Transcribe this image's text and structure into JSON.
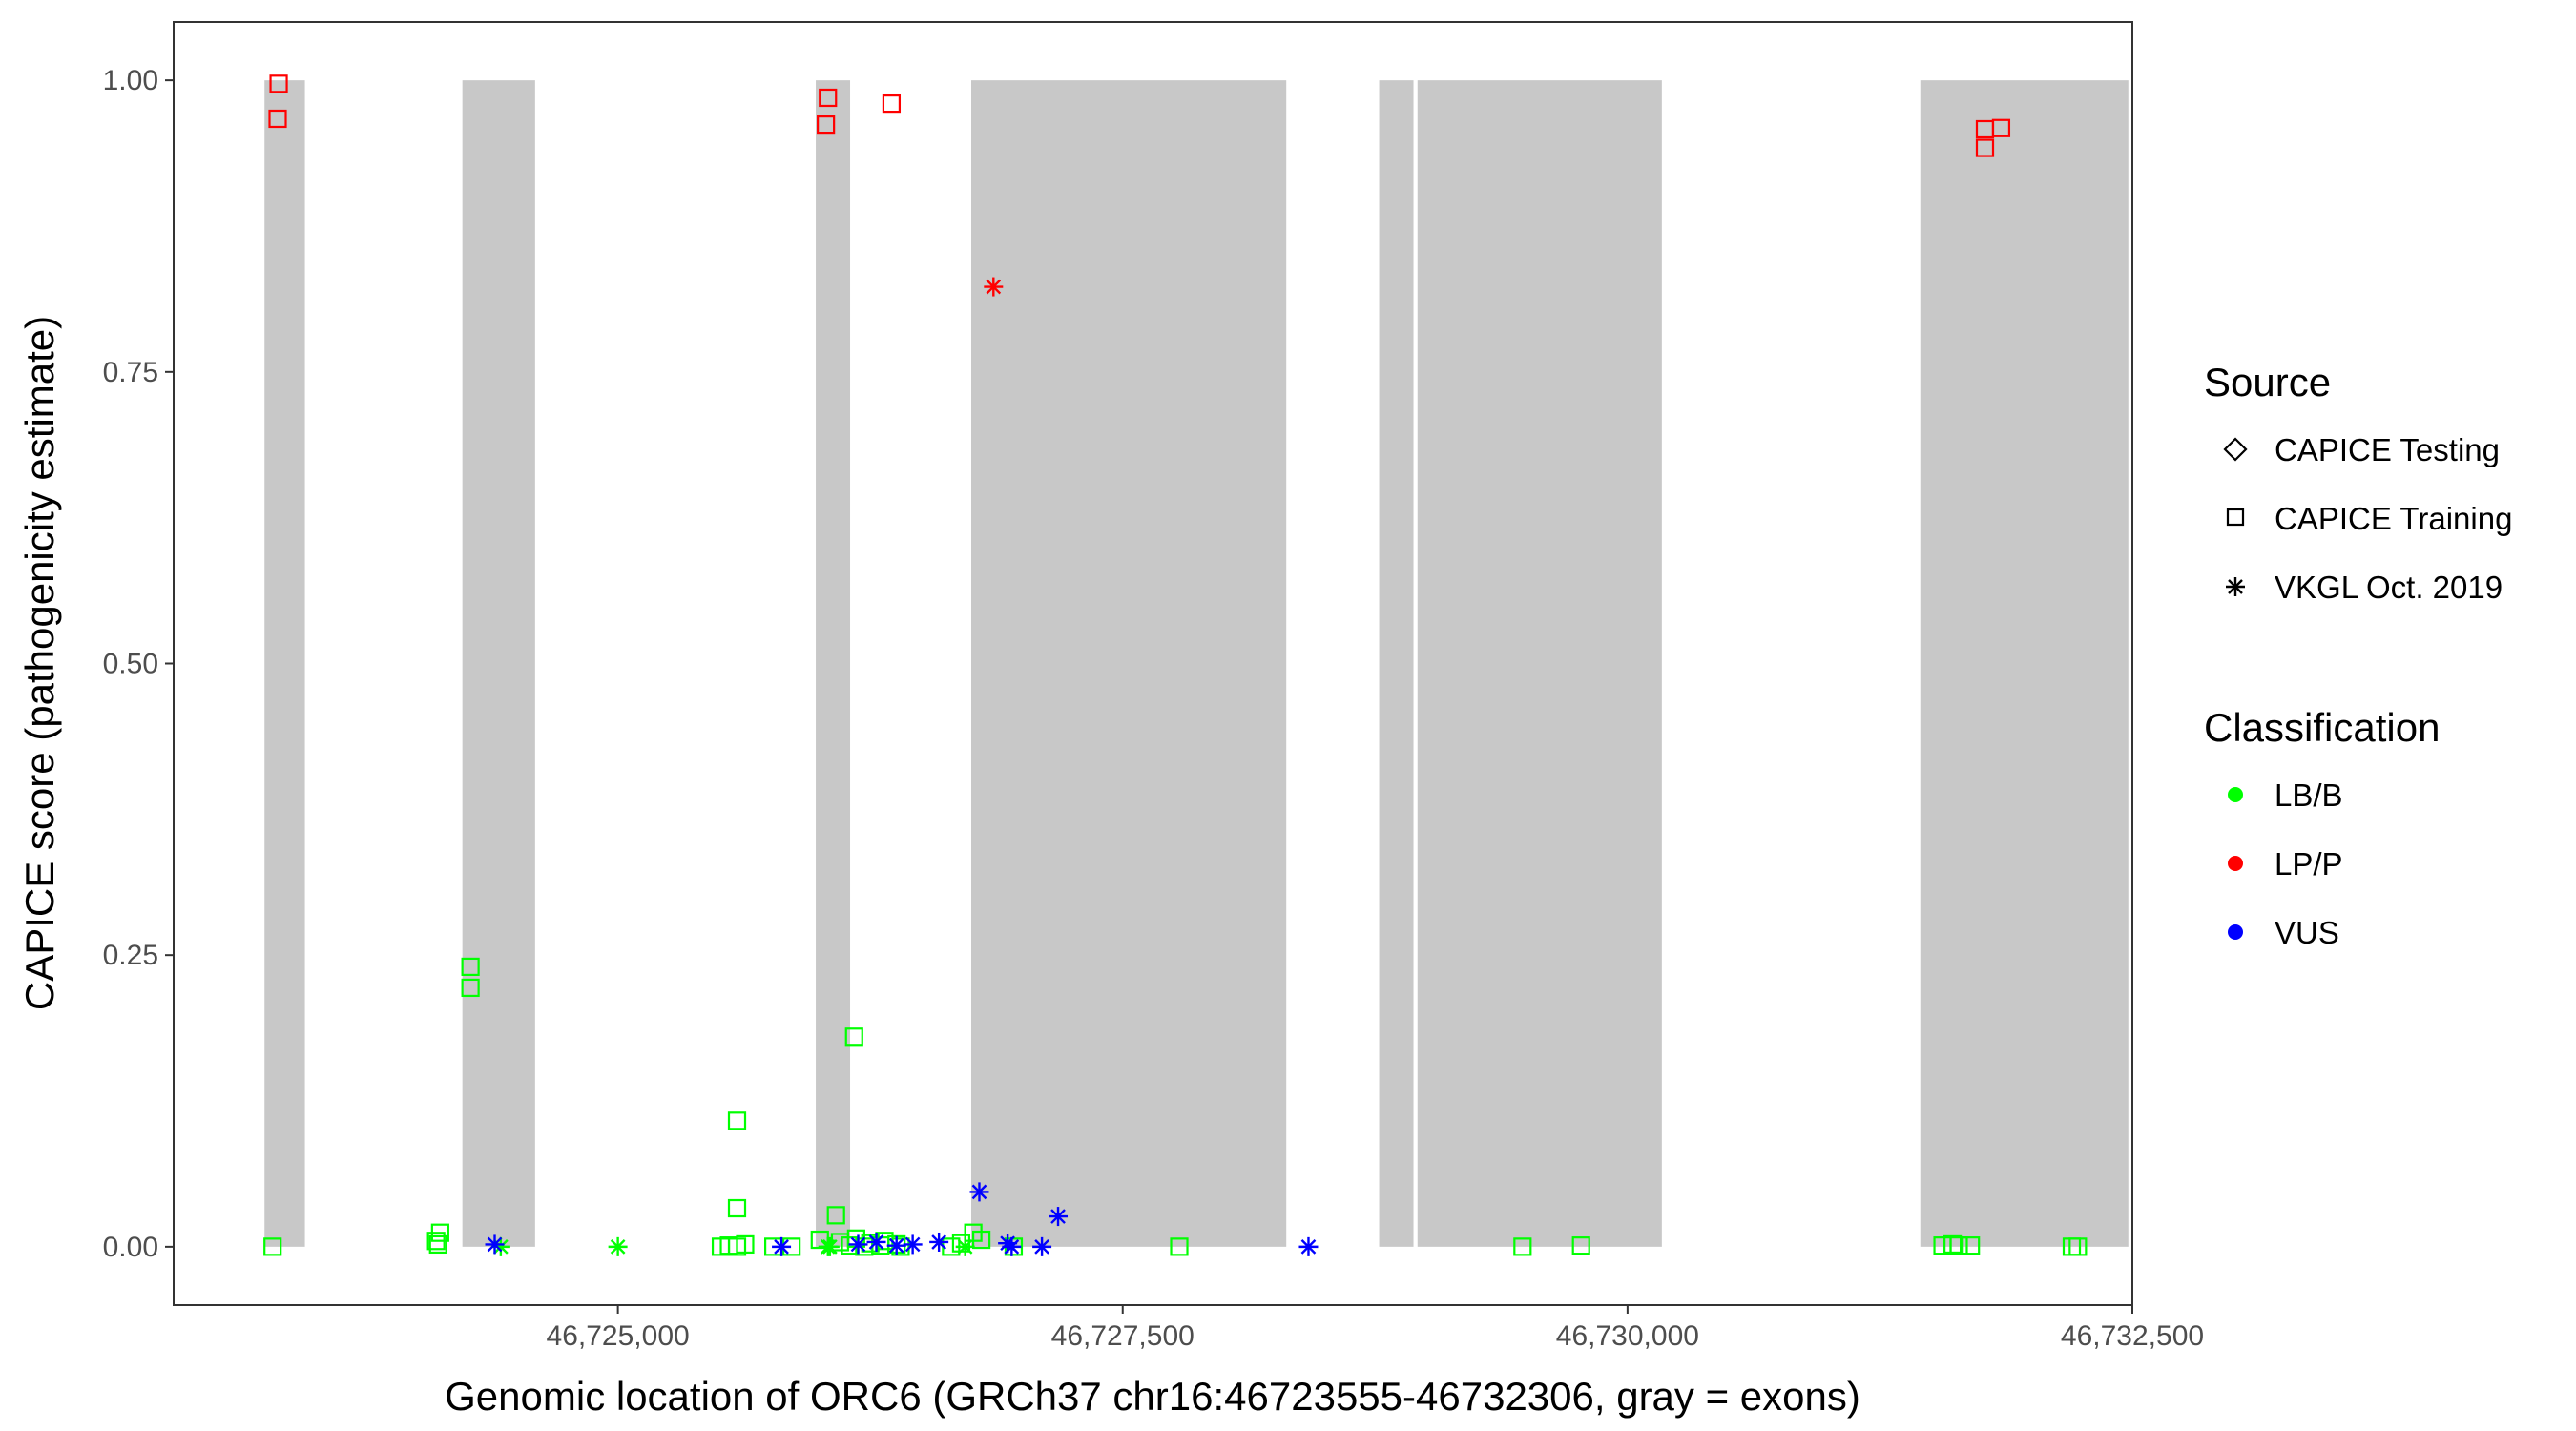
{
  "chart_data": {
    "type": "scatter",
    "xlabel": "Genomic location of ORC6 (GRCh37 chr16:46723555-46732306, gray = exons)",
    "ylabel": "CAPICE score (pathogenicity estimate)",
    "xlim": [
      46722800,
      46732500
    ],
    "ylim": [
      -0.05,
      1.05
    ],
    "x_ticks": [
      46725000,
      46727500,
      46730000,
      46732500
    ],
    "x_tick_labels": [
      "46,725,000",
      "46,727,500",
      "46,730,000",
      "46,732,500"
    ],
    "y_ticks": [
      0,
      0.25,
      0.5,
      0.75,
      1
    ],
    "y_tick_labels": [
      "0.00",
      "0.25",
      "0.50",
      "0.75",
      "1.00"
    ],
    "grid": false,
    "exon_color": "#c8c8c8",
    "exons": [
      {
        "start": 46723250,
        "end": 46723450
      },
      {
        "start": 46724230,
        "end": 46724590
      },
      {
        "start": 46725980,
        "end": 46726150
      },
      {
        "start": 46726750,
        "end": 46728310
      },
      {
        "start": 46728770,
        "end": 46728940
      },
      {
        "start": 46728960,
        "end": 46730170
      },
      {
        "start": 46731450,
        "end": 46732480
      }
    ],
    "legend_position": "right",
    "legends": {
      "source": {
        "title": "Source",
        "items": [
          {
            "label": "CAPICE Testing",
            "shape": "diamond"
          },
          {
            "label": "CAPICE Training",
            "shape": "square"
          },
          {
            "label": "VKGL Oct. 2019",
            "shape": "asterisk"
          }
        ]
      },
      "classification": {
        "title": "Classification",
        "items": [
          {
            "label": "LB/B",
            "color": "#00ff00"
          },
          {
            "label": "LP/P",
            "color": "#ff0000"
          },
          {
            "label": "VUS",
            "color": "#0000ff"
          }
        ]
      }
    },
    "series": [
      {
        "name": "LP/P",
        "color": "#ff0000",
        "points": [
          {
            "x": 46723320,
            "y": 0.997,
            "shape": "square"
          },
          {
            "x": 46723315,
            "y": 0.967,
            "shape": "square"
          },
          {
            "x": 46726040,
            "y": 0.985,
            "shape": "square"
          },
          {
            "x": 46726030,
            "y": 0.962,
            "shape": "square"
          },
          {
            "x": 46726355,
            "y": 0.98,
            "shape": "square"
          },
          {
            "x": 46726860,
            "y": 0.823,
            "shape": "asterisk"
          },
          {
            "x": 46731770,
            "y": 0.958,
            "shape": "square"
          },
          {
            "x": 46731850,
            "y": 0.959,
            "shape": "square"
          },
          {
            "x": 46731770,
            "y": 0.942,
            "shape": "square"
          }
        ]
      },
      {
        "name": "LB/B",
        "color": "#00ff00",
        "points": [
          {
            "x": 46723290,
            "y": 0.0,
            "shape": "square"
          },
          {
            "x": 46724120,
            "y": 0.012,
            "shape": "square"
          },
          {
            "x": 46724100,
            "y": 0.005,
            "shape": "square"
          },
          {
            "x": 46724110,
            "y": 0.002,
            "shape": "square"
          },
          {
            "x": 46724420,
            "y": 0.0,
            "shape": "asterisk"
          },
          {
            "x": 46724270,
            "y": 0.24,
            "shape": "square"
          },
          {
            "x": 46724270,
            "y": 0.222,
            "shape": "square"
          },
          {
            "x": 46725000,
            "y": 0.0,
            "shape": "asterisk"
          },
          {
            "x": 46725590,
            "y": 0.108,
            "shape": "square"
          },
          {
            "x": 46725590,
            "y": 0.033,
            "shape": "square"
          },
          {
            "x": 46725510,
            "y": 0.0,
            "shape": "square"
          },
          {
            "x": 46725550,
            "y": 0.001,
            "shape": "square"
          },
          {
            "x": 46725590,
            "y": 0.0,
            "shape": "square"
          },
          {
            "x": 46725630,
            "y": 0.002,
            "shape": "square"
          },
          {
            "x": 46725770,
            "y": 0.0,
            "shape": "square"
          },
          {
            "x": 46725860,
            "y": 0.0,
            "shape": "square"
          },
          {
            "x": 46726040,
            "y": 0.0,
            "shape": "asterisk"
          },
          {
            "x": 46726050,
            "y": 0.0,
            "shape": "asterisk"
          },
          {
            "x": 46726170,
            "y": 0.18,
            "shape": "square"
          },
          {
            "x": 46726080,
            "y": 0.027,
            "shape": "square"
          },
          {
            "x": 46726000,
            "y": 0.006,
            "shape": "square"
          },
          {
            "x": 46726100,
            "y": 0.004,
            "shape": "square"
          },
          {
            "x": 46726180,
            "y": 0.007,
            "shape": "square"
          },
          {
            "x": 46726250,
            "y": 0.003,
            "shape": "square"
          },
          {
            "x": 46726320,
            "y": 0.005,
            "shape": "square"
          },
          {
            "x": 46726380,
            "y": 0.002,
            "shape": "square"
          },
          {
            "x": 46726150,
            "y": 0.001,
            "shape": "square"
          },
          {
            "x": 46726220,
            "y": 0.0,
            "shape": "square"
          },
          {
            "x": 46726300,
            "y": 0.001,
            "shape": "square"
          },
          {
            "x": 46726400,
            "y": 0.0,
            "shape": "square"
          },
          {
            "x": 46726650,
            "y": 0.0,
            "shape": "square"
          },
          {
            "x": 46726700,
            "y": 0.003,
            "shape": "square"
          },
          {
            "x": 46726760,
            "y": 0.012,
            "shape": "square"
          },
          {
            "x": 46726800,
            "y": 0.006,
            "shape": "square"
          },
          {
            "x": 46726720,
            "y": 0.0,
            "shape": "asterisk"
          },
          {
            "x": 46726960,
            "y": 0.0,
            "shape": "square"
          },
          {
            "x": 46727780,
            "y": 0.0,
            "shape": "square"
          },
          {
            "x": 46729480,
            "y": 0.0,
            "shape": "square"
          },
          {
            "x": 46729770,
            "y": 0.001,
            "shape": "square"
          },
          {
            "x": 46731560,
            "y": 0.001,
            "shape": "square"
          },
          {
            "x": 46731610,
            "y": 0.002,
            "shape": "square"
          },
          {
            "x": 46731640,
            "y": 0.001,
            "shape": "square"
          },
          {
            "x": 46731700,
            "y": 0.001,
            "shape": "square"
          },
          {
            "x": 46732200,
            "y": 0.0,
            "shape": "square"
          },
          {
            "x": 46732230,
            "y": 0.0,
            "shape": "square"
          }
        ]
      },
      {
        "name": "VUS",
        "color": "#0000ff",
        "points": [
          {
            "x": 46724390,
            "y": 0.002,
            "shape": "asterisk"
          },
          {
            "x": 46725810,
            "y": 0.0,
            "shape": "asterisk"
          },
          {
            "x": 46726190,
            "y": 0.002,
            "shape": "asterisk"
          },
          {
            "x": 46726280,
            "y": 0.004,
            "shape": "asterisk"
          },
          {
            "x": 46726380,
            "y": 0.001,
            "shape": "asterisk"
          },
          {
            "x": 46726460,
            "y": 0.002,
            "shape": "asterisk"
          },
          {
            "x": 46726590,
            "y": 0.004,
            "shape": "asterisk"
          },
          {
            "x": 46726790,
            "y": 0.047,
            "shape": "asterisk"
          },
          {
            "x": 46726930,
            "y": 0.003,
            "shape": "asterisk"
          },
          {
            "x": 46726950,
            "y": 0.0,
            "shape": "asterisk"
          },
          {
            "x": 46727100,
            "y": 0.0,
            "shape": "asterisk"
          },
          {
            "x": 46727180,
            "y": 0.026,
            "shape": "asterisk"
          },
          {
            "x": 46728420,
            "y": 0.0,
            "shape": "asterisk"
          }
        ]
      }
    ]
  }
}
